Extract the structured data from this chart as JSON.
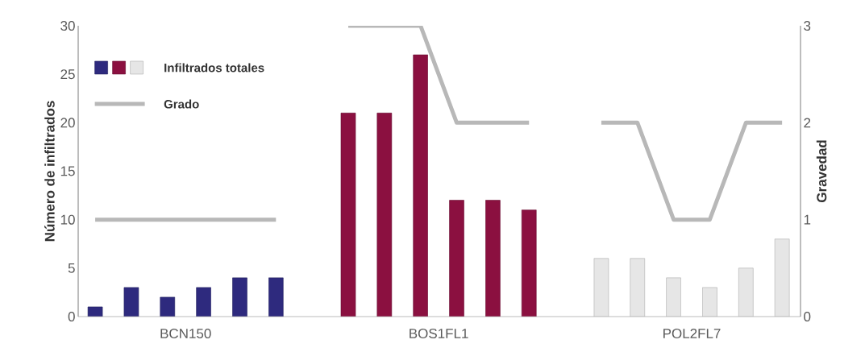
{
  "chart_data": {
    "type": "bar",
    "ylabel": "Número de infiltrados",
    "y2label": "Gravedad",
    "categories": [
      null,
      null,
      null,
      null,
      null,
      null,
      null,
      null,
      null,
      null,
      null,
      null,
      null,
      null,
      null,
      null,
      null,
      null,
      null,
      null
    ],
    "annotations": [
      "BCN150",
      "BOS1FL1",
      "POL2FL7"
    ],
    "series": [
      {
        "name": "Infiltrados totales",
        "values": [
          1,
          3,
          2,
          3,
          4,
          4,
          null,
          21,
          21,
          27,
          12,
          12,
          11,
          null,
          6,
          6,
          4,
          3,
          5,
          8
        ],
        "colors": [
          "#2e2a7e",
          "#2e2a7e",
          "#2e2a7e",
          "#2e2a7e",
          "#2e2a7e",
          "#2e2a7e",
          null,
          "#8b1040",
          "#8b1040",
          "#8b1040",
          "#8b1040",
          "#8b1040",
          "#8b1040",
          null,
          "#e6e6e6",
          "#e6e6e6",
          "#e6e6e6",
          "#e6e6e6",
          "#e6e6e6",
          "#e6e6e6"
        ]
      },
      {
        "name": "Grado",
        "type": "line",
        "axis": "y2",
        "color": "#b8b8b8",
        "values": [
          1,
          1,
          1,
          1,
          1,
          1,
          null,
          3,
          3,
          3,
          2,
          2,
          2,
          null,
          2,
          2,
          1,
          1,
          2,
          2
        ]
      }
    ],
    "ylim": [
      0,
      30
    ],
    "yticks": [
      0,
      5,
      10,
      15,
      20,
      25,
      30
    ],
    "y2lim": [
      0,
      3
    ],
    "y2ticks": [
      0,
      1,
      2,
      3
    ],
    "legend": "top left",
    "grid": false
  }
}
